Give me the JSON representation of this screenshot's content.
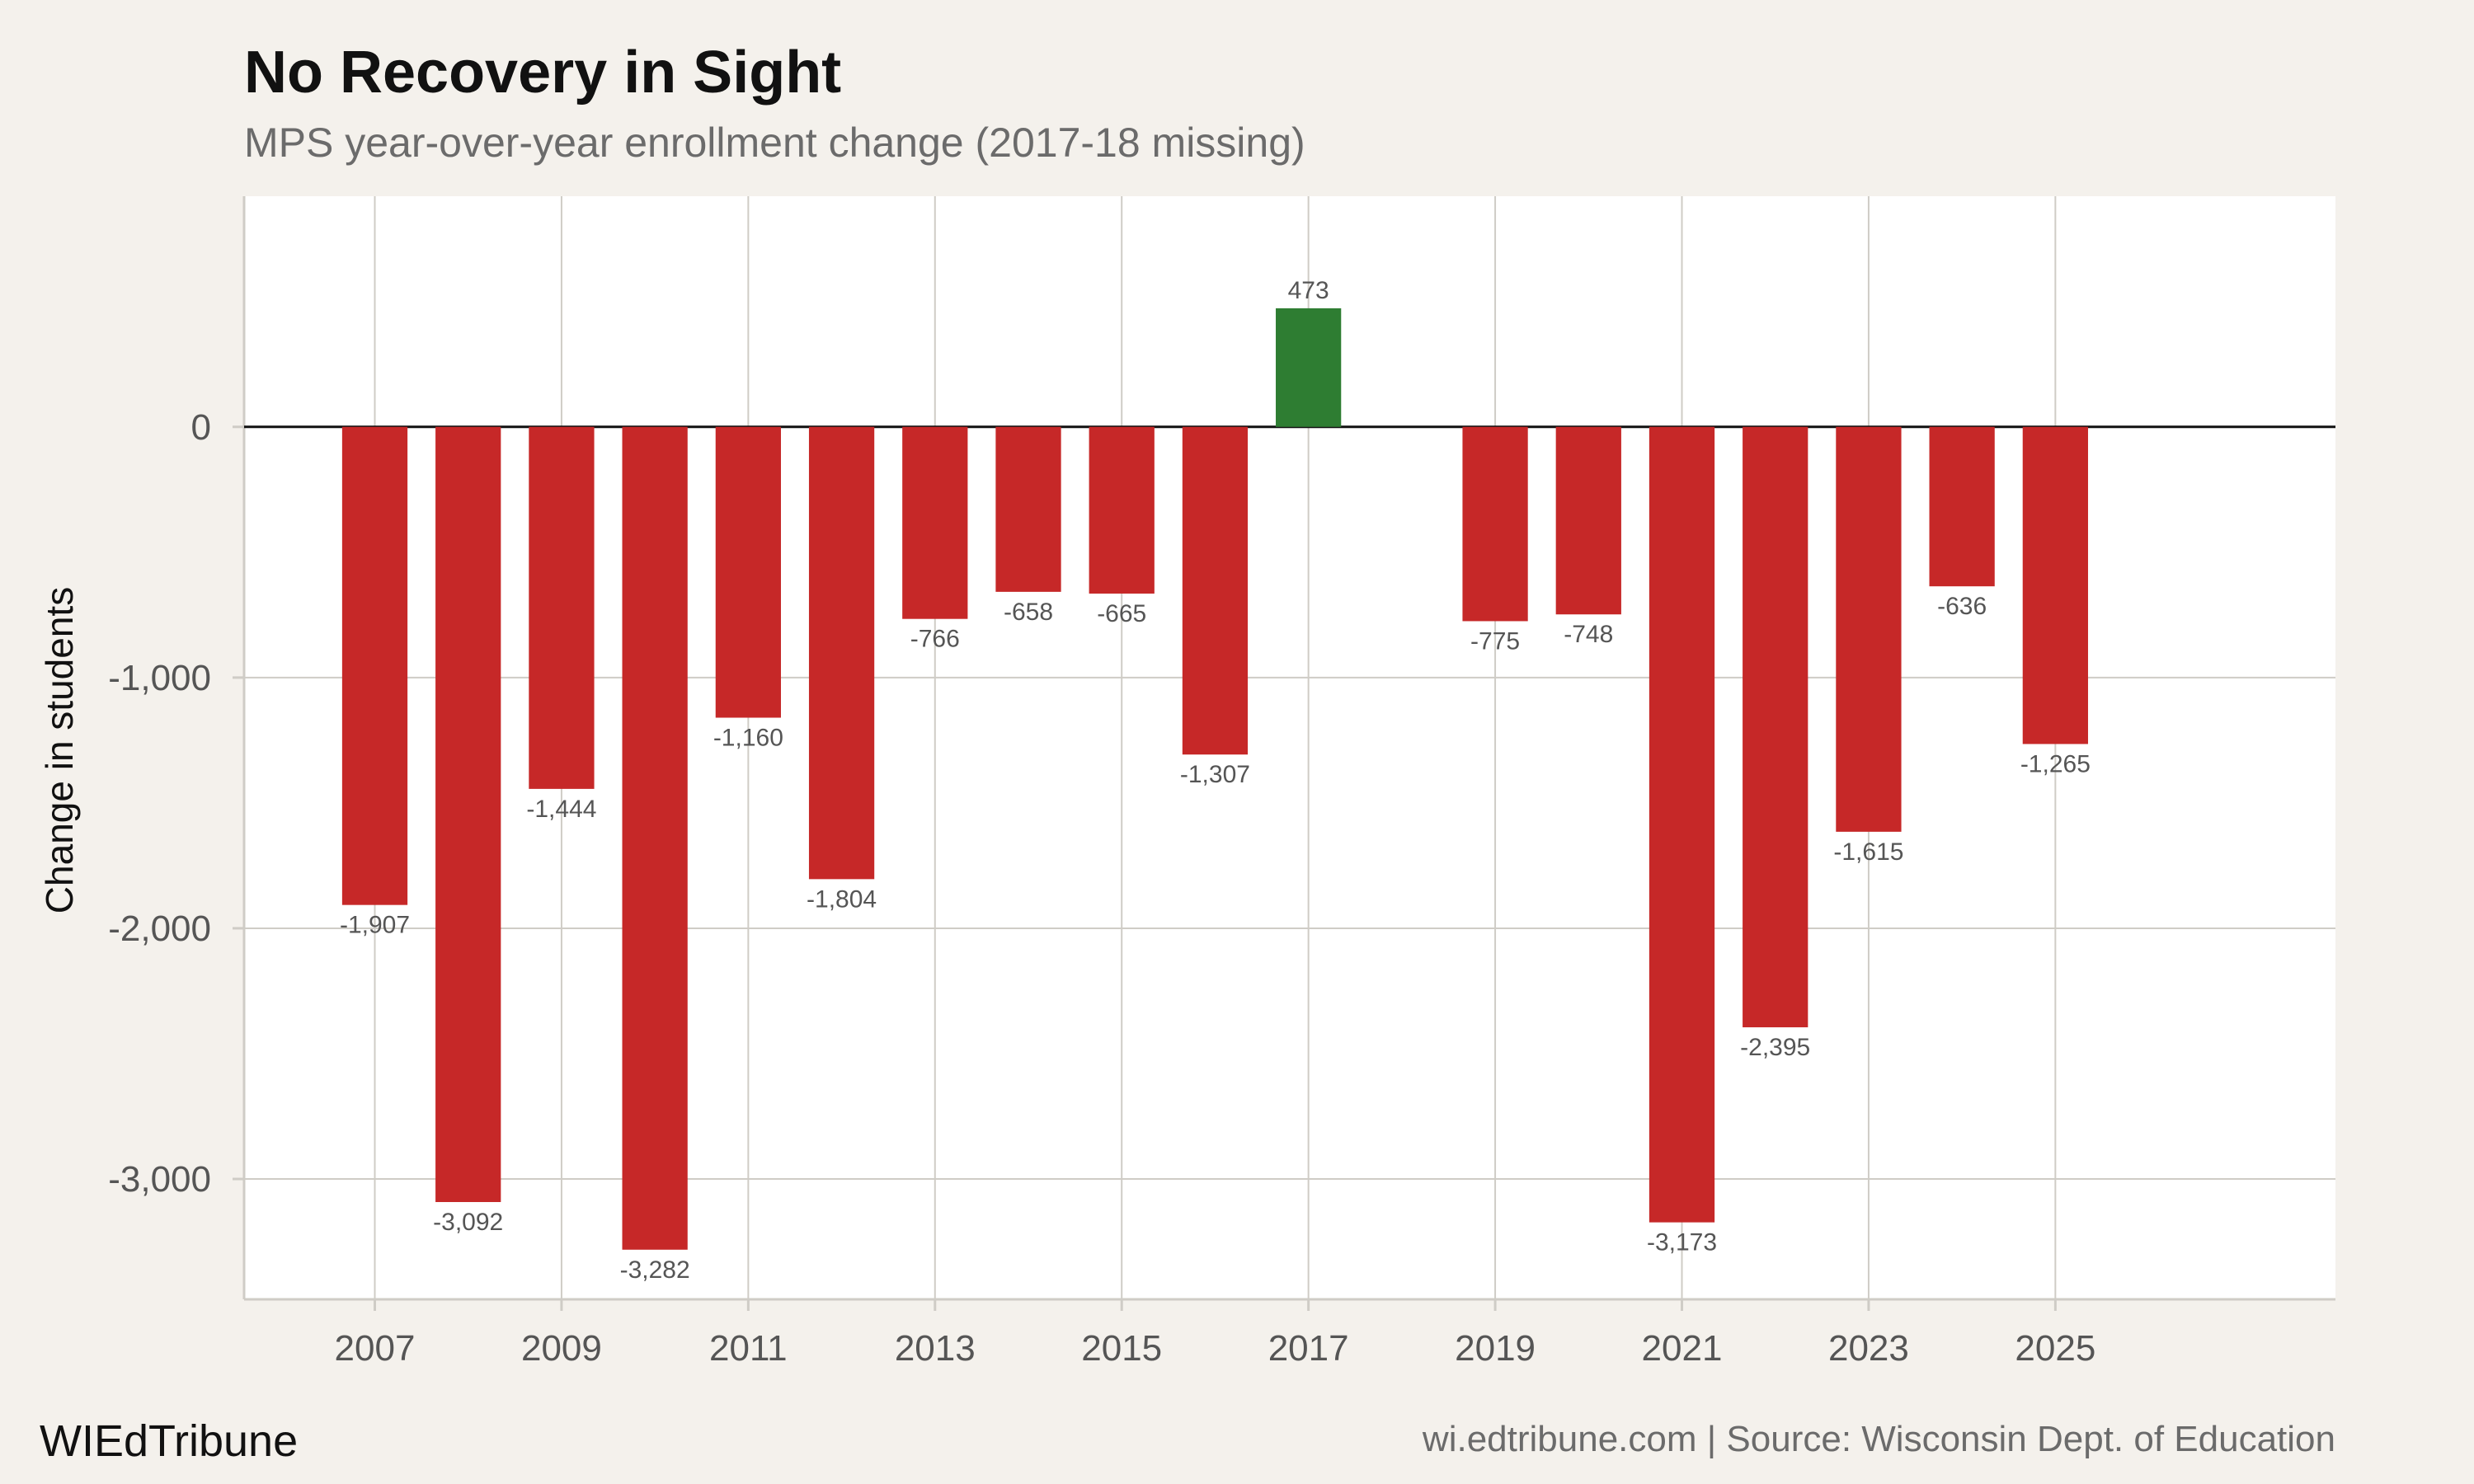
{
  "chart_data": {
    "type": "bar",
    "title": "No Recovery in Sight",
    "subtitle": "MPS year-over-year enrollment change (2017-18 missing)",
    "xlabel": "",
    "ylabel": "Change in students",
    "x": [
      2007,
      2008,
      2009,
      2010,
      2011,
      2012,
      2013,
      2014,
      2015,
      2016,
      2017,
      2019,
      2020,
      2021,
      2022,
      2023,
      2024,
      2025
    ],
    "values": [
      -1907,
      -3092,
      -1444,
      -3282,
      -1160,
      -1804,
      -766,
      -658,
      -665,
      -1307,
      473,
      -775,
      -748,
      -3173,
      -2395,
      -1615,
      -636,
      -1265
    ],
    "value_labels": [
      "-1,907",
      "-3,092",
      "-1,444",
      "-3,282",
      "-1,160",
      "-1,804",
      "-766",
      "-658",
      "-665",
      "-1,307",
      "473",
      "-775",
      "-748",
      "-3,173",
      "-2,395",
      "-1,615",
      "-636",
      "-1,265"
    ],
    "x_ticks": [
      2007,
      2009,
      2011,
      2013,
      2015,
      2017,
      2019,
      2021,
      2023,
      2025
    ],
    "x_tick_labels": [
      "2007",
      "2009",
      "2011",
      "2013",
      "2015",
      "2017",
      "2019",
      "2021",
      "2023",
      "2025"
    ],
    "xlim": [
      2005.6,
      2028.0
    ],
    "y_ticks": [
      0,
      -1000,
      -2000,
      -3000
    ],
    "y_tick_labels": [
      "0",
      "-1,000",
      "-2,000",
      "-3,000"
    ],
    "ylim": [
      -3480,
      920
    ],
    "grid": true,
    "colors": {
      "negative": "#c62828",
      "positive": "#2e7d32",
      "plot_background": "#ffffff",
      "page_background": "#f4f1ec",
      "grid": "#cfccc6",
      "zero_line": "#111111"
    }
  },
  "footer": {
    "brand": "WIEdTribune",
    "source": "wi.edtribune.com | Source: Wisconsin Dept. of Education"
  }
}
